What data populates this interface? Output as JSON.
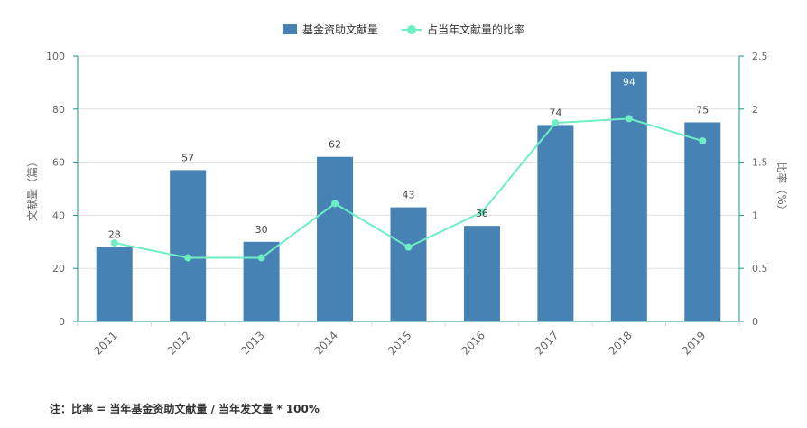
{
  "chart_data": {
    "type": "bar",
    "categories": [
      "2011",
      "2012",
      "2013",
      "2014",
      "2015",
      "2016",
      "2017",
      "2018",
      "2019"
    ],
    "series": [
      {
        "name": "基金资助文献量",
        "type": "bar",
        "axis": "left",
        "values": [
          28,
          57,
          30,
          62,
          43,
          36,
          74,
          94,
          75
        ]
      },
      {
        "name": "占当年文献量的比率",
        "type": "line",
        "axis": "right",
        "values": [
          0.74,
          0.6,
          0.6,
          1.11,
          0.7,
          1.03,
          1.87,
          1.91,
          1.7
        ]
      }
    ],
    "ylabel": "文献量（篇）",
    "y2label": "比率（%）",
    "ylim": [
      0,
      100
    ],
    "y2lim": [
      0,
      2.5
    ],
    "yticks": [
      "0",
      "20",
      "40",
      "60",
      "80",
      "100"
    ],
    "y2ticks": [
      "0",
      "0.5",
      "1",
      "1.5",
      "2",
      "2.5"
    ],
    "grid": true,
    "legend": "top-center",
    "colors": {
      "bar": "#4682b4",
      "line": "#6eeec4",
      "axis": "#0f9a8f"
    }
  },
  "footnote": "注：比率 = 当年基金资助文献量 / 当年发文量 * 100%"
}
